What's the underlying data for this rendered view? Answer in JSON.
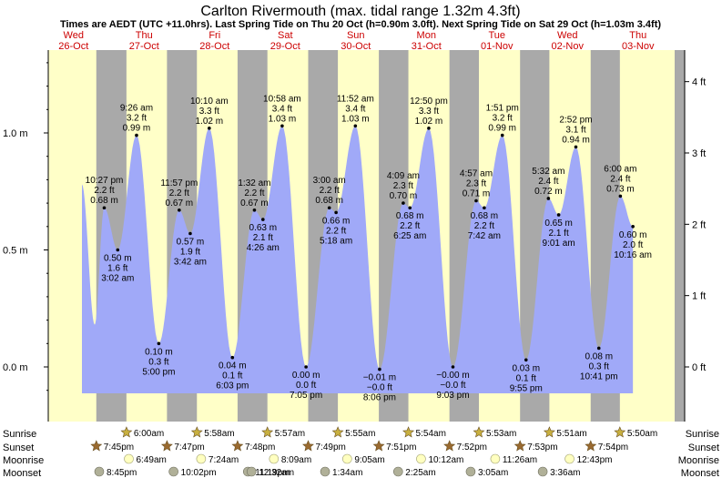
{
  "page": {
    "title": "Carlton Rivermouth (max. tidal range 1.32m 4.3ft)",
    "subtitle": "Times are AEDT (UTC +11.0hrs). Last Spring Tide on Thu 20 Oct (h=0.90m 3.0ft). Next Spring Tide on Sat 29 Oct (h=1.03m 3.4ft)"
  },
  "colors": {
    "day": "#ffffc8",
    "night": "#a9a9a9",
    "tide_fill": "#a0a9f8",
    "day_label": "#cc0000",
    "sun_icon": "#c8b040",
    "sunset_icon": "#9a6a30",
    "moonrise_icon": "#ffffc0",
    "moonset_icon": "#b0b098"
  },
  "chart_data": {
    "type": "area",
    "title": "Carlton Rivermouth (max. tidal range 1.32m 4.3ft)",
    "subtitle": "Times are AEDT (UTC +11.0hrs). Last Spring Tide on Thu 20 Oct (h=0.90m 3.0ft). Next Spring Tide on Sat 29 Oct (h=1.03m 3.4ft)",
    "x_range": [
      "Wed 26-Oct 00:00",
      "Thu 03-Nov 12:00"
    ],
    "y_range_m": [
      -0.12,
      1.32
    ],
    "left_axis_ticks": [
      "1.0 m",
      "0.5 m",
      "0.0 m"
    ],
    "left_axis_values": [
      1.0,
      0.5,
      0.0
    ],
    "right_axis_ticks": [
      "4 ft",
      "3 ft",
      "2 ft",
      "1 ft",
      "0 ft"
    ],
    "right_axis_values": [
      4,
      3,
      2,
      1,
      0
    ],
    "grid": false,
    "days": [
      {
        "weekday": "Wed",
        "date": "26-Oct"
      },
      {
        "weekday": "Thu",
        "date": "27-Oct"
      },
      {
        "weekday": "Fri",
        "date": "28-Oct"
      },
      {
        "weekday": "Sat",
        "date": "29-Oct"
      },
      {
        "weekday": "Sun",
        "date": "30-Oct"
      },
      {
        "weekday": "Mon",
        "date": "31-Oct"
      },
      {
        "weekday": "Tue",
        "date": "01-Nov"
      },
      {
        "weekday": "Wed",
        "date": "02-Nov"
      },
      {
        "weekday": "Thu",
        "date": "03-Nov"
      }
    ],
    "tide_start_m": 0.78,
    "tides": [
      {
        "day": 0,
        "time": "10:27 pm",
        "m": "0.68 m",
        "ft": "2.2 ft",
        "value": 0.68
      },
      {
        "day": 1,
        "time": "3:02 am",
        "m": "0.50 m",
        "ft": "1.6 ft",
        "value": 0.5
      },
      {
        "day": 1,
        "time": "9:26 am",
        "m": "0.99 m",
        "ft": "3.2 ft",
        "value": 0.99
      },
      {
        "day": 1,
        "time": "5:00 pm",
        "m": "0.10 m",
        "ft": "0.3 ft",
        "value": 0.1
      },
      {
        "day": 1,
        "time": "11:57 pm",
        "m": "0.67 m",
        "ft": "2.2 ft",
        "value": 0.67
      },
      {
        "day": 2,
        "time": "3:42 am",
        "m": "0.57 m",
        "ft": "1.9 ft",
        "value": 0.57
      },
      {
        "day": 2,
        "time": "10:10 am",
        "m": "1.02 m",
        "ft": "3.3 ft",
        "value": 1.02
      },
      {
        "day": 2,
        "time": "6:03 pm",
        "m": "0.04 m",
        "ft": "0.1 ft",
        "value": 0.04
      },
      {
        "day": 3,
        "time": "1:32 am",
        "m": "0.67 m",
        "ft": "2.2 ft",
        "value": 0.67
      },
      {
        "day": 3,
        "time": "4:26 am",
        "m": "0.63 m",
        "ft": "2.1 ft",
        "value": 0.63
      },
      {
        "day": 3,
        "time": "10:58 am",
        "m": "1.03 m",
        "ft": "3.4 ft",
        "value": 1.03
      },
      {
        "day": 3,
        "time": "7:05 pm",
        "m": "0.00 m",
        "ft": "0.0 ft",
        "value": 0.0
      },
      {
        "day": 4,
        "time": "3:00 am",
        "m": "0.68 m",
        "ft": "2.2 ft",
        "value": 0.68
      },
      {
        "day": 4,
        "time": "5:18 am",
        "m": "0.66 m",
        "ft": "2.2 ft",
        "value": 0.66
      },
      {
        "day": 4,
        "time": "11:52 am",
        "m": "1.03 m",
        "ft": "3.4 ft",
        "value": 1.03
      },
      {
        "day": 4,
        "time": "8:06 pm",
        "m": "−0.01 m",
        "ft": "−0.0 ft",
        "value": -0.01
      },
      {
        "day": 5,
        "time": "4:09 am",
        "m": "0.70 m",
        "ft": "2.3 ft",
        "value": 0.7
      },
      {
        "day": 5,
        "time": "6:25 am",
        "m": "0.68 m",
        "ft": "2.2 ft",
        "value": 0.68
      },
      {
        "day": 5,
        "time": "12:50 pm",
        "m": "1.02 m",
        "ft": "3.3 ft",
        "value": 1.02
      },
      {
        "day": 5,
        "time": "9:03 pm",
        "m": "−0.00 m",
        "ft": "−0.0 ft",
        "value": 0.0
      },
      {
        "day": 6,
        "time": "4:57 am",
        "m": "0.71 m",
        "ft": "2.3 ft",
        "value": 0.71
      },
      {
        "day": 6,
        "time": "7:42 am",
        "m": "0.68 m",
        "ft": "2.2 ft",
        "value": 0.68
      },
      {
        "day": 6,
        "time": "1:51 pm",
        "m": "0.99 m",
        "ft": "3.2 ft",
        "value": 0.99
      },
      {
        "day": 6,
        "time": "9:55 pm",
        "m": "0.03 m",
        "ft": "0.1 ft",
        "value": 0.03
      },
      {
        "day": 7,
        "time": "5:32 am",
        "m": "0.72 m",
        "ft": "2.4 ft",
        "value": 0.72
      },
      {
        "day": 7,
        "time": "9:01 am",
        "m": "0.65 m",
        "ft": "2.1 ft",
        "value": 0.65
      },
      {
        "day": 7,
        "time": "2:52 pm",
        "m": "0.94 m",
        "ft": "3.1 ft",
        "value": 0.94
      },
      {
        "day": 7,
        "time": "10:41 pm",
        "m": "0.08 m",
        "ft": "0.3 ft",
        "value": 0.08
      },
      {
        "day": 8,
        "time": "6:00 am",
        "m": "0.73 m",
        "ft": "2.4 ft",
        "value": 0.73
      },
      {
        "day": 8,
        "time": "10:16 am",
        "m": "0.60 m",
        "ft": "2.0 ft",
        "value": 0.6
      }
    ],
    "sunrise": [
      "",
      "6:00am",
      "5:58am",
      "5:57am",
      "5:55am",
      "5:54am",
      "5:53am",
      "5:51am",
      "5:50am"
    ],
    "sunset": [
      "7:45pm",
      "7:47pm",
      "7:48pm",
      "7:49pm",
      "7:51pm",
      "7:52pm",
      "7:53pm",
      "7:54pm",
      ""
    ],
    "moonrise": [
      "",
      "6:49am",
      "7:24am",
      "8:09am",
      "9:05am",
      "10:12am",
      "11:26am",
      "12:43pm",
      ""
    ],
    "moonset": [
      "8:45pm",
      "10:02pm",
      "11:19pm",
      "12:32am",
      "1:34am",
      "2:25am",
      "3:05am",
      "3:36am",
      ""
    ]
  },
  "rows": {
    "sunrise_label": "Sunrise",
    "sunset_label": "Sunset",
    "moonrise_label": "Moonrise",
    "moonset_label": "Moonset"
  }
}
